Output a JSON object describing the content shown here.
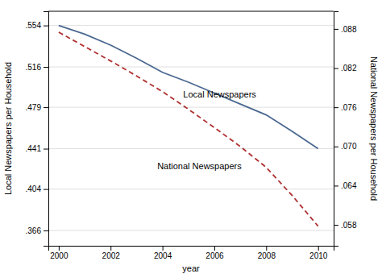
{
  "chart_data": {
    "type": "line",
    "xlabel": "year",
    "ylabel": "Local Newspapers per Household",
    "y2label": "National Newspapers per Household",
    "x": [
      2000,
      2001,
      2002,
      2003,
      2004,
      2005,
      2006,
      2007,
      2008,
      2009,
      2010
    ],
    "series": [
      {
        "color": "#4a6890",
        "line_style": "solid",
        "values": [
          0.554,
          0.546,
          0.536,
          0.524,
          0.511,
          0.502,
          0.492,
          0.482,
          0.472,
          0.457,
          0.441
        ]
      },
      {
        "color": "#b03030",
        "line_style": "dashed",
        "axis": "y2",
        "values": [
          0.0875,
          0.0853,
          0.0831,
          0.0808,
          0.0784,
          0.0757,
          0.0729,
          0.07,
          0.0668,
          0.0625,
          0.0578
        ]
      }
    ],
    "xlim": [
      1999.6,
      2010.6
    ],
    "xticks": [
      2000,
      2002,
      2004,
      2006,
      2008,
      2010
    ],
    "ylim": [
      0.352,
      0.567
    ],
    "yticks": [
      {
        "value": 0.366,
        "label": ".366"
      },
      {
        "value": 0.404,
        "label": ".404"
      },
      {
        "value": 0.441,
        "label": ".441"
      },
      {
        "value": 0.479,
        "label": ".479"
      },
      {
        "value": 0.516,
        "label": ".516"
      },
      {
        "value": 0.554,
        "label": ".554"
      }
    ],
    "y2lim": [
      0.0548,
      0.0907
    ],
    "y2ticks": [
      {
        "value": 0.058,
        "label": ".058"
      },
      {
        "value": 0.064,
        "label": ".064"
      },
      {
        "value": 0.07,
        "label": ".070"
      },
      {
        "value": 0.076,
        "label": ".076"
      },
      {
        "value": 0.082,
        "label": ".082"
      },
      {
        "value": 0.088,
        "label": ".088"
      }
    ],
    "grid": true,
    "annotations": [
      {
        "text": "Local Newspapers",
        "x": 2004.8,
        "y": 0.488
      },
      {
        "text": "National Newspapers",
        "x": 2003.8,
        "y": 0.422
      }
    ]
  }
}
